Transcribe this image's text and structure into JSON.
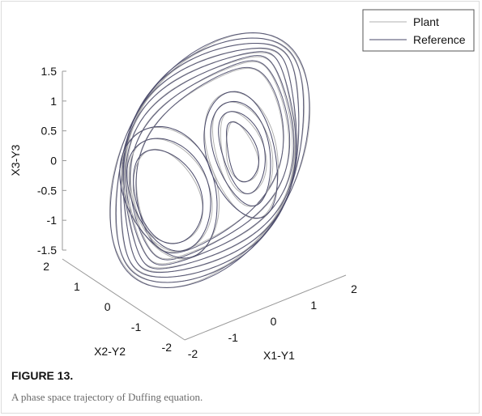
{
  "chart_data": {
    "type": "line",
    "variant": "3d-phase-trajectory",
    "axes": {
      "x": {
        "label": "X1-Y1",
        "ticks": [
          "-2",
          "-1",
          "0",
          "1",
          "2"
        ],
        "range": [
          -2,
          2
        ]
      },
      "y": {
        "label": "X2-Y2",
        "ticks": [
          "-2",
          "-1",
          "0",
          "1",
          "2"
        ],
        "range": [
          -2,
          2
        ]
      },
      "z": {
        "label": "X3-Y3",
        "ticks": [
          "-1.5",
          "-1",
          "-0.5",
          "0",
          "0.5",
          "1",
          "1.5"
        ],
        "range": [
          -1.5,
          1.5
        ]
      }
    },
    "legend": {
      "position": "top-right",
      "entries": [
        "Plant",
        "Reference"
      ]
    },
    "series": [
      {
        "name": "Plant",
        "color": "#b0b0b0"
      },
      {
        "name": "Reference",
        "color": "#4a4a6a"
      }
    ]
  },
  "caption": {
    "label": "FIGURE 13.",
    "text": "A phase space trajectory of Duffing equation."
  }
}
